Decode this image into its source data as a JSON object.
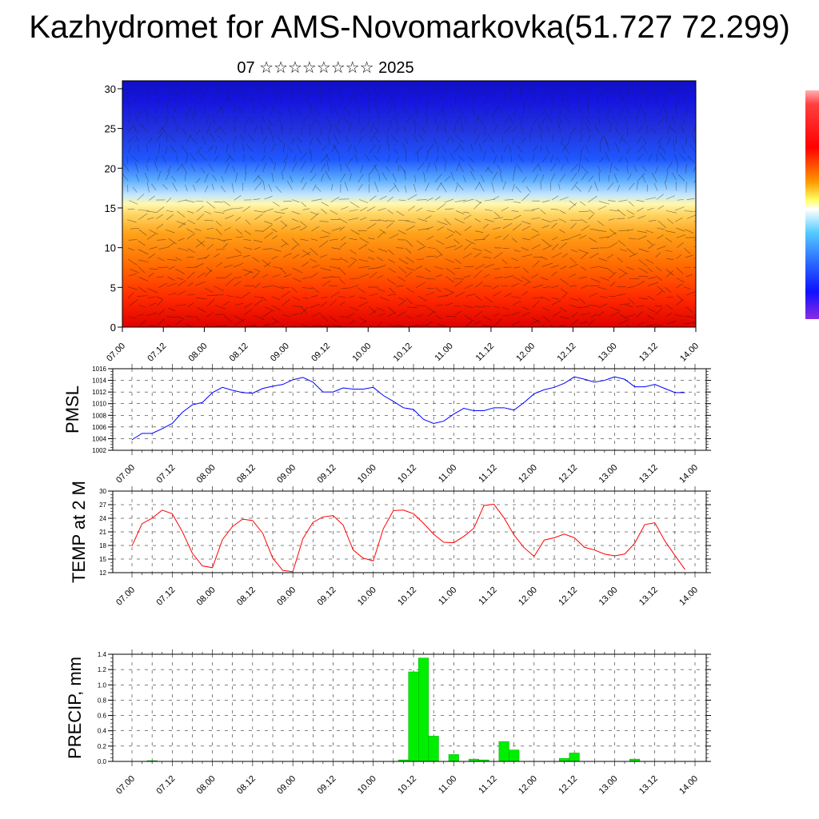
{
  "title": "Kazhydromet for AMS-Novomarkovka(51.727 72.299)",
  "subtitle": "07 ☆☆☆☆☆☆☆☆ 2025",
  "colors": {
    "pmsl_line": "#0000ff",
    "temp_line": "#ff0000",
    "precip_bar": "#00ee00",
    "precip_bar_edge": "#00aa00"
  },
  "chart_data": [
    {
      "type": "heatmap",
      "name": "vertical cross-section",
      "x_ticks": [
        "07.00",
        "07.12",
        "08.00",
        "08.12",
        "09.00",
        "09.12",
        "10.00",
        "10.12",
        "11.00",
        "11.12",
        "12.00",
        "12.12",
        "13.00",
        "13.12",
        "14.00"
      ],
      "y_ticks": [
        "0",
        "5",
        "10",
        "15",
        "20",
        "25",
        "30"
      ],
      "ylim": [
        0,
        31
      ],
      "colormap": [
        "#ff0000",
        "#ff5500",
        "#ff9a00",
        "#ffd24d",
        "#ffffaa",
        "#a7dcff",
        "#2e8bff",
        "#1b3fff",
        "#1515c8"
      ],
      "colorbar_position": "right"
    },
    {
      "type": "line",
      "ylabel": "PMSL",
      "x_ticks": [
        "07.00",
        "07.12",
        "08.00",
        "08.12",
        "09.00",
        "09.12",
        "10.00",
        "10.12",
        "11.00",
        "11.12",
        "12.00",
        "12.12",
        "13.00",
        "13.12",
        "14.00"
      ],
      "y_ticks": [
        "1002",
        "1004",
        "1006",
        "1008",
        "1010",
        "1012",
        "1014",
        "1016"
      ],
      "ylim": [
        1002,
        1016
      ],
      "x_hours": [
        0,
        3,
        6,
        9,
        12,
        15,
        18,
        21,
        24,
        27,
        30,
        33,
        36,
        39,
        42,
        45,
        48,
        51,
        54,
        57,
        60,
        63,
        66,
        69,
        72,
        75,
        78,
        81,
        84,
        87,
        90,
        93,
        96,
        99,
        102,
        105,
        108,
        111,
        114,
        117,
        120,
        123,
        126,
        129,
        132,
        135,
        138,
        141,
        144,
        147,
        150,
        153,
        156,
        159,
        162,
        165
      ],
      "values": [
        1003.8,
        1004.9,
        1004.9,
        1005.7,
        1006.6,
        1008.5,
        1009.8,
        1010.2,
        1011.9,
        1012.8,
        1012.3,
        1011.9,
        1011.8,
        1012.6,
        1013.0,
        1013.3,
        1014.1,
        1014.5,
        1013.7,
        1012.0,
        1012.0,
        1012.7,
        1012.5,
        1012.5,
        1012.8,
        1011.4,
        1010.4,
        1009.3,
        1009.0,
        1007.3,
        1006.6,
        1007.0,
        1008.2,
        1009.2,
        1008.8,
        1008.8,
        1009.3,
        1009.3,
        1008.9,
        1010.2,
        1011.7,
        1012.4,
        1012.8,
        1013.5,
        1014.6,
        1014.2,
        1013.7,
        1014.0,
        1014.6,
        1014.2,
        1012.9,
        1012.9,
        1013.3,
        1012.6,
        1011.9,
        1011.9
      ],
      "grid": true
    },
    {
      "type": "line",
      "ylabel": "TEMP at 2 M",
      "x_ticks": [
        "07.00",
        "07.12",
        "08.00",
        "08.12",
        "09.00",
        "09.12",
        "10.00",
        "10.12",
        "11.00",
        "11.12",
        "12.00",
        "12.12",
        "13.00",
        "13.12",
        "14.00"
      ],
      "y_ticks": [
        "12",
        "15",
        "18",
        "21",
        "24",
        "27",
        "30"
      ],
      "ylim": [
        12,
        30
      ],
      "x_hours": [
        0,
        3,
        6,
        9,
        12,
        15,
        18,
        21,
        24,
        27,
        30,
        33,
        36,
        39,
        42,
        45,
        48,
        51,
        54,
        57,
        60,
        63,
        66,
        69,
        72,
        75,
        78,
        81,
        84,
        87,
        90,
        93,
        96,
        99,
        102,
        105,
        108,
        111,
        114,
        117,
        120,
        123,
        126,
        129,
        132,
        135,
        138,
        141,
        144,
        147,
        150,
        153,
        156,
        159,
        162,
        165
      ],
      "values": [
        17.9,
        22.8,
        24.0,
        25.8,
        25.0,
        21.1,
        16.3,
        13.5,
        13.1,
        19.3,
        22.2,
        23.8,
        23.5,
        20.7,
        15.2,
        12.5,
        12.2,
        19.5,
        23.1,
        24.3,
        24.6,
        22.5,
        17.0,
        15.2,
        14.6,
        21.7,
        25.7,
        25.8,
        25.0,
        22.9,
        20.5,
        18.7,
        18.6,
        20.0,
        21.8,
        26.8,
        27.1,
        24.1,
        20.3,
        17.5,
        15.6,
        19.2,
        19.7,
        20.5,
        19.7,
        17.6,
        17.0,
        16.1,
        15.7,
        16.1,
        18.5,
        22.6,
        23.0,
        19.0,
        15.8,
        12.7
      ],
      "grid": true
    },
    {
      "type": "bar",
      "ylabel": "PRECIP, mm",
      "x_ticks": [
        "07.00",
        "07.12",
        "08.00",
        "08.12",
        "09.00",
        "09.12",
        "10.00",
        "10.12",
        "11.00",
        "11.12",
        "12.00",
        "12.12",
        "13.00",
        "13.12",
        "14.00"
      ],
      "y_ticks": [
        "0.0",
        "0.2",
        "0.4",
        "0.6",
        "0.8",
        "1.0",
        "1.2",
        "1.4"
      ],
      "ylim": [
        0,
        1.4
      ],
      "x_hours": [
        6,
        81,
        84,
        87,
        90,
        96,
        102,
        105,
        111,
        114,
        129,
        132,
        150,
        153,
        156
      ],
      "values": [
        0.01,
        0.02,
        1.17,
        1.35,
        0.33,
        0.09,
        0.03,
        0.02,
        0.26,
        0.15,
        0.04,
        0.11,
        0.03,
        0.0,
        0.0
      ],
      "grid": true
    }
  ]
}
